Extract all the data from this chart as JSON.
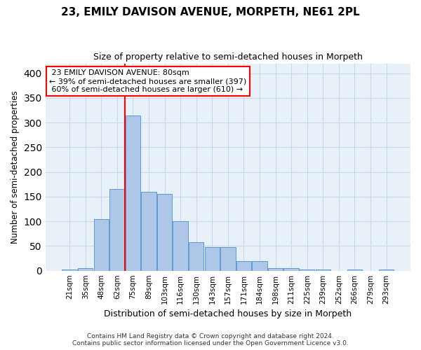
{
  "title": "23, EMILY DAVISON AVENUE, MORPETH, NE61 2PL",
  "subtitle": "Size of property relative to semi-detached houses in Morpeth",
  "xlabel": "Distribution of semi-detached houses by size in Morpeth",
  "ylabel": "Number of semi-detached properties",
  "categories": [
    "21sqm",
    "35sqm",
    "48sqm",
    "62sqm",
    "75sqm",
    "89sqm",
    "103sqm",
    "116sqm",
    "130sqm",
    "143sqm",
    "157sqm",
    "171sqm",
    "184sqm",
    "198sqm",
    "211sqm",
    "225sqm",
    "239sqm",
    "252sqm",
    "266sqm",
    "279sqm",
    "293sqm"
  ],
  "values": [
    3,
    5,
    105,
    165,
    315,
    160,
    155,
    100,
    57,
    48,
    48,
    20,
    20,
    5,
    5,
    3,
    3,
    0,
    3,
    0,
    2
  ],
  "bar_color": "#aec6e8",
  "bar_edge_color": "#5b9bd5",
  "grid_color": "#c8d8ec",
  "background_color": "#e8f0f8",
  "property_label": "23 EMILY DAVISON AVENUE: 80sqm",
  "pct_smaller": 39,
  "count_smaller": 397,
  "pct_larger": 60,
  "count_larger": 610,
  "vline_x_index": 3.5,
  "annotation_box_color": "white",
  "annotation_box_edge": "red",
  "ylim": [
    0,
    420
  ],
  "yticks": [
    0,
    50,
    100,
    150,
    200,
    250,
    300,
    350,
    400
  ],
  "footer": "Contains HM Land Registry data © Crown copyright and database right 2024.\nContains public sector information licensed under the Open Government Licence v3.0."
}
